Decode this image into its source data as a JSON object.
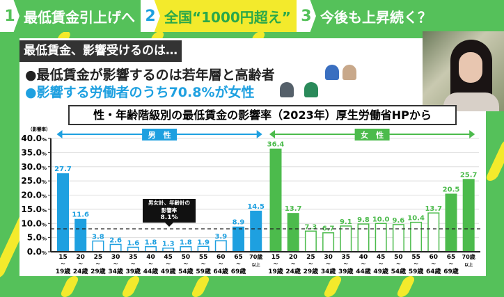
{
  "topbar": [
    {
      "num": "1",
      "label": "最低賃金引上げへ"
    },
    {
      "num": "2",
      "label": "全国“1000円超え”"
    },
    {
      "num": "3",
      "label": "今後も上昇続く？"
    }
  ],
  "subtitle": "最低賃金、影響受けるのは…",
  "bullets": [
    "●最低賃金が影響するのは若年層と高齢者",
    "●影響する労働者のうち70.8%が女性"
  ],
  "chart_data": {
    "type": "bar",
    "title": "性・年齢階級別の最低賃金の影響率（2023年）厚生労働省HPから",
    "ylabel": "（影響率）",
    "ylim": [
      0,
      40
    ],
    "yticks": [
      "0.0%",
      "5.0%",
      "10.0%",
      "15.0%",
      "20.0%",
      "25.0%",
      "30.0%",
      "35.0%",
      "40.0%"
    ],
    "grid": true,
    "categories": [
      [
        "15",
        "〜",
        "19歳"
      ],
      [
        "20",
        "〜",
        "24歳"
      ],
      [
        "25",
        "〜",
        "29歳"
      ],
      [
        "30",
        "〜",
        "34歳"
      ],
      [
        "35",
        "〜",
        "39歳"
      ],
      [
        "40",
        "〜",
        "44歳"
      ],
      [
        "45",
        "〜",
        "49歳"
      ],
      [
        "50",
        "〜",
        "54歳"
      ],
      [
        "55",
        "〜",
        "59歳"
      ],
      [
        "60",
        "〜",
        "64歳"
      ],
      [
        "65",
        "〜",
        "69歳"
      ],
      [
        "70歳",
        "以上",
        ""
      ]
    ],
    "series": [
      {
        "name": "男　性",
        "color": "#1ea0e0",
        "values": [
          27.7,
          11.6,
          3.8,
          2.6,
          1.6,
          1.8,
          1.3,
          1.8,
          1.9,
          3.9,
          8.9,
          14.5
        ],
        "filled": [
          true,
          true,
          false,
          false,
          false,
          false,
          false,
          false,
          false,
          false,
          true,
          true
        ]
      },
      {
        "name": "女　性",
        "color": "#4cbb4c",
        "values": [
          36.4,
          13.7,
          7.3,
          6.7,
          9.1,
          9.8,
          10.0,
          9.6,
          10.4,
          13.7,
          20.5,
          25.7
        ],
        "filled": [
          true,
          true,
          false,
          false,
          false,
          false,
          false,
          false,
          false,
          false,
          true,
          true
        ]
      }
    ],
    "reference": {
      "value": 8.1,
      "label_lines": [
        "男女計、年齢計の",
        "影響率",
        "8.1%"
      ]
    }
  },
  "colors": {
    "background": "#55c15a",
    "stripe": "#f3ea2c",
    "male": "#1ea0e0",
    "female": "#4cbb4c"
  }
}
